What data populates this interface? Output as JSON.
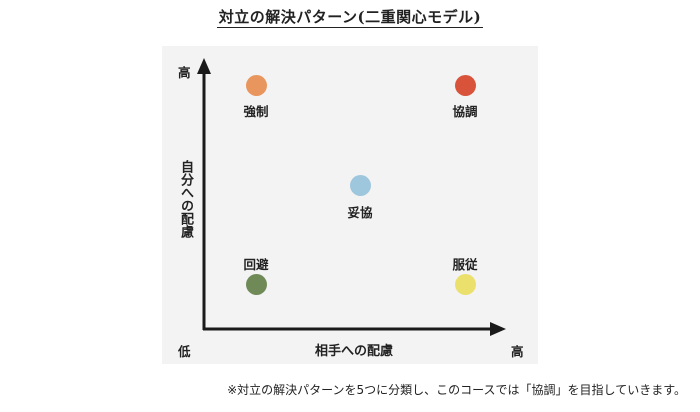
{
  "title": "対立の解決パターン(二重関心モデル)",
  "y_axis": {
    "label": "自分への配慮",
    "high": "高",
    "low": "低"
  },
  "x_axis": {
    "label": "相手への配慮",
    "high": "高"
  },
  "styles": [
    {
      "id": "competing",
      "label": "強制",
      "color": "#e8955e"
    },
    {
      "id": "collaborating",
      "label": "協調",
      "color": "#d9533a"
    },
    {
      "id": "compromising",
      "label": "妥協",
      "color": "#9ec6dd"
    },
    {
      "id": "avoiding",
      "label": "回避",
      "color": "#6f8a57"
    },
    {
      "id": "accommodating",
      "label": "服従",
      "color": "#ece06d"
    }
  ],
  "footnote": "※対立の解決パターンを5つに分類し、このコースでは「協調」を目指していきます。"
}
